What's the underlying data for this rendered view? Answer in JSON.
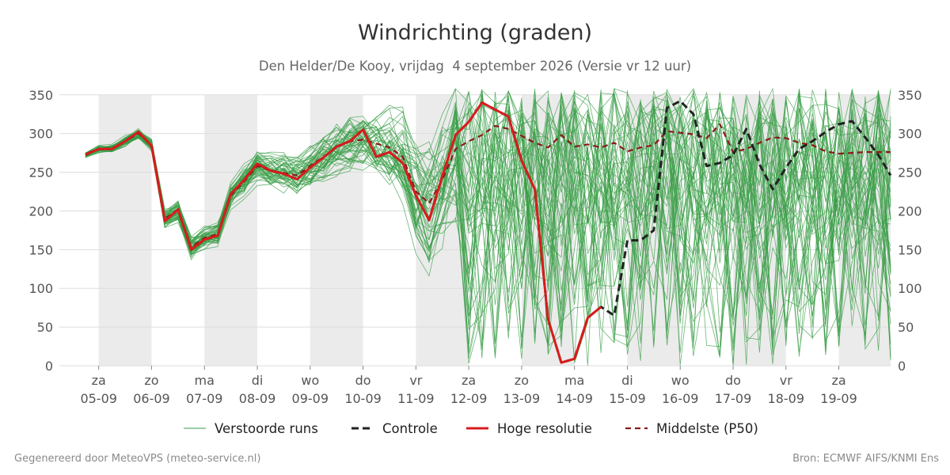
{
  "chart_data": {
    "type": "line",
    "title": "Windrichting (graden)",
    "subtitle": "Den Helder/De Kooy, vrijdag  4 september 2026 (Versie vr 12 uur)",
    "ylim": [
      0,
      360
    ],
    "yticks": [
      0,
      50,
      100,
      150,
      200,
      250,
      300,
      350
    ],
    "xlim": [
      -0.25,
      14.98
    ],
    "x_unit": "day",
    "x_ticks": [
      {
        "day": "za",
        "date": "05-09"
      },
      {
        "day": "zo",
        "date": "06-09"
      },
      {
        "day": "ma",
        "date": "07-09"
      },
      {
        "day": "di",
        "date": "08-09"
      },
      {
        "day": "wo",
        "date": "09-09"
      },
      {
        "day": "do",
        "date": "10-09"
      },
      {
        "day": "vr",
        "date": "11-09"
      },
      {
        "day": "za",
        "date": "12-09"
      },
      {
        "day": "zo",
        "date": "13-09"
      },
      {
        "day": "ma",
        "date": "14-09"
      },
      {
        "day": "di",
        "date": "15-09"
      },
      {
        "day": "wo",
        "date": "16-09"
      },
      {
        "day": "do",
        "date": "17-09"
      },
      {
        "day": "vr",
        "date": "18-09"
      },
      {
        "day": "za",
        "date": "19-09"
      }
    ],
    "weekend_bands": [
      [
        0,
        1
      ],
      [
        2,
        3
      ],
      [
        4,
        5
      ],
      [
        6,
        7
      ],
      [
        8,
        9
      ],
      [
        10,
        11
      ],
      [
        12,
        13
      ],
      [
        14,
        14.98
      ]
    ],
    "grid": true,
    "legend_position": "bottom",
    "colors": {
      "ensemble": "#3a9e47",
      "control": "#222222",
      "high_res": "#d81c1c",
      "median": "#8b1a1a",
      "band": "#ebebeb",
      "grid": "#dddddd"
    },
    "ensemble_members": 50,
    "series": [
      {
        "name": "Controle",
        "style": "dashed",
        "x": [
          -0.25,
          0,
          0.25,
          0.5,
          0.75,
          1,
          1.25,
          1.5,
          1.75,
          2,
          2.25,
          2.5,
          2.75,
          3,
          3.25,
          3.5,
          3.75,
          4,
          4.25,
          4.5,
          4.75,
          5,
          5.25,
          5.5,
          5.75,
          6,
          6.25,
          6.5,
          6.75,
          7,
          7.25,
          7.5,
          7.75,
          8,
          8.25,
          8.5,
          8.75,
          9,
          9.25,
          9.5,
          9.75,
          10,
          10.25,
          10.5,
          10.75,
          11,
          11.25,
          11.5,
          11.75,
          12,
          12.25,
          12.5,
          12.75,
          13,
          13.25,
          13.5,
          13.75,
          14,
          14.25,
          14.5,
          14.75,
          14.98
        ],
        "values": [
          273,
          280,
          280,
          290,
          302,
          284,
          187,
          202,
          150,
          163,
          168,
          222,
          240,
          261,
          252,
          248,
          241,
          256,
          269,
          283,
          290,
          305,
          270,
          276,
          262,
          220,
          188,
          245,
          298,
          315,
          340,
          331,
          322,
          265,
          228,
          60,
          4,
          9,
          62,
          76,
          65,
          162,
          162,
          175,
          333,
          342,
          325,
          258,
          262,
          272,
          306,
          260,
          228,
          256,
          280,
          290,
          302,
          312,
          316,
          295,
          272,
          246
        ]
      },
      {
        "name": "Hoge resolutie",
        "style": "solid",
        "x": [
          -0.25,
          0,
          0.25,
          0.5,
          0.75,
          1,
          1.25,
          1.5,
          1.75,
          2,
          2.25,
          2.5,
          2.75,
          3,
          3.25,
          3.5,
          3.75,
          4,
          4.25,
          4.5,
          4.75,
          5,
          5.25,
          5.5,
          5.75,
          6,
          6.25,
          6.5,
          6.75,
          7,
          7.25,
          7.5,
          7.75,
          8,
          8.25,
          8.5,
          8.75,
          9,
          9.25,
          9.5
        ],
        "values": [
          273,
          280,
          280,
          290,
          302,
          284,
          187,
          202,
          150,
          163,
          168,
          222,
          240,
          261,
          252,
          248,
          241,
          256,
          269,
          283,
          290,
          305,
          270,
          276,
          262,
          220,
          188,
          245,
          298,
          315,
          340,
          331,
          322,
          265,
          228,
          60,
          4,
          9,
          62,
          76
        ]
      },
      {
        "name": "Middelste (P50)",
        "style": "dashed",
        "x": [
          -0.25,
          0,
          0.25,
          0.5,
          0.75,
          1,
          1.25,
          1.5,
          1.75,
          2,
          2.25,
          2.5,
          2.75,
          3,
          3.25,
          3.5,
          3.75,
          4,
          4.25,
          4.5,
          4.75,
          5,
          5.25,
          5.5,
          5.75,
          6,
          6.25,
          6.5,
          6.75,
          7,
          7.25,
          7.5,
          7.75,
          8,
          8.25,
          8.5,
          8.75,
          9,
          9.25,
          9.5,
          9.75,
          10,
          10.25,
          10.5,
          10.75,
          11,
          11.25,
          11.5,
          11.75,
          12,
          12.25,
          12.5,
          12.75,
          13,
          13.25,
          13.5,
          13.75,
          14,
          14.25,
          14.5,
          14.75,
          14.98
        ],
        "values": [
          272,
          280,
          281,
          290,
          300,
          285,
          190,
          201,
          153,
          165,
          170,
          220,
          238,
          258,
          252,
          249,
          246,
          258,
          270,
          282,
          290,
          292,
          287,
          282,
          270,
          225,
          210,
          240,
          280,
          290,
          298,
          310,
          306,
          297,
          288,
          282,
          298,
          283,
          286,
          282,
          288,
          277,
          282,
          285,
          303,
          301,
          299,
          294,
          312,
          276,
          280,
          288,
          295,
          294,
          288,
          285,
          277,
          274,
          275,
          276,
          276,
          276
        ]
      },
      {
        "name": "Verstoorde runs",
        "style": "thin",
        "spread_lower": [
          -0.25,
          0,
          0.25,
          0.5,
          0.75,
          1,
          1.25,
          1.5,
          1.75,
          2,
          2.25,
          2.5,
          2.75,
          3,
          3.25,
          3.5,
          3.75,
          4,
          4.25,
          4.5,
          4.75,
          5,
          5.25,
          5.5,
          5.75,
          6,
          6.25,
          6.5,
          6.75,
          7,
          7.25,
          7.5,
          7.75,
          8,
          8.25,
          8.5,
          8.75,
          9,
          9.25,
          9.5,
          9.75,
          10,
          10.25,
          10.5,
          10.75,
          11,
          11.25,
          11.5,
          11.75,
          12,
          12.25,
          12.5,
          12.75,
          13,
          13.25,
          13.5,
          13.75,
          14,
          14.25,
          14.5,
          14.75,
          14.98
        ],
        "values_spread": [
          6,
          7,
          8,
          9,
          10,
          12,
          18,
          20,
          20,
          20,
          22,
          26,
          28,
          30,
          32,
          34,
          38,
          40,
          44,
          46,
          48,
          50,
          60,
          70,
          80,
          100,
          110,
          120,
          140,
          160,
          170,
          180,
          180,
          180,
          180,
          180,
          180,
          180,
          180,
          180,
          180,
          180,
          180,
          180,
          180,
          180,
          180,
          180,
          180,
          180,
          180,
          180,
          180,
          180,
          180,
          180,
          180,
          180,
          180,
          180,
          180,
          180
        ]
      }
    ]
  },
  "legend": {
    "ensemble": "Verstoorde runs",
    "control": "Controle",
    "high_res": "Hoge resolutie",
    "median": "Middelste (P50)"
  },
  "footer": {
    "left": "Gegenereerd door MeteoVPS (meteo-service.nl)",
    "right": "Bron: ECMWF AIFS/KNMI Ens"
  }
}
